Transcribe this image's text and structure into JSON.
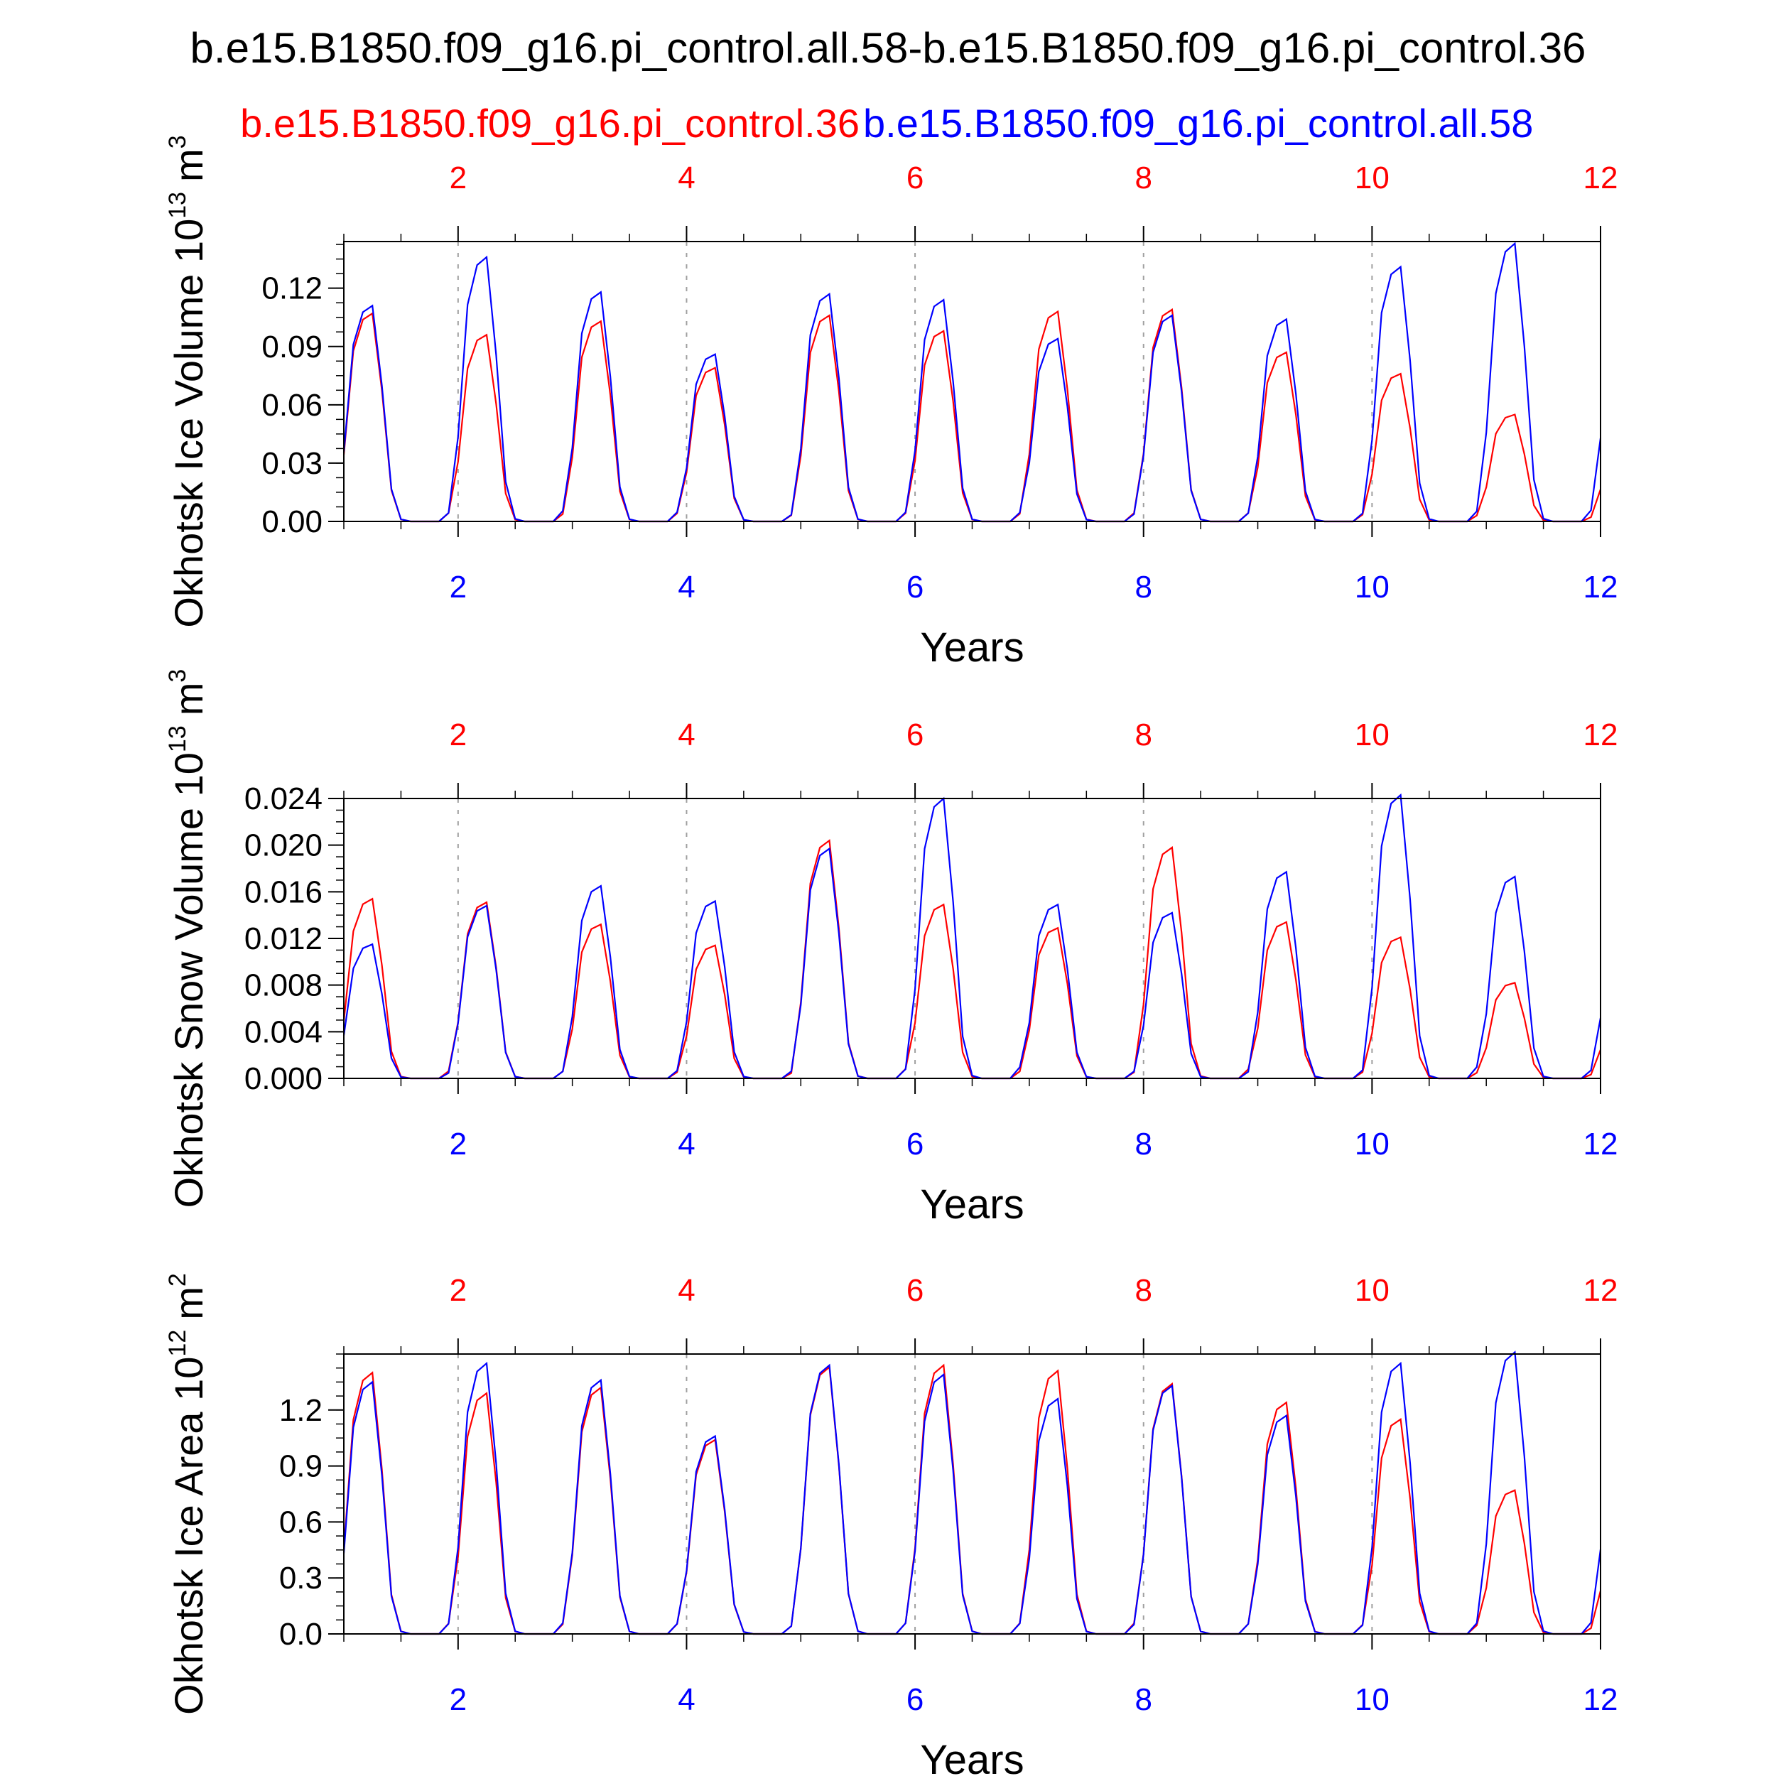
{
  "title": "b.e15.B1850.f09_g16.pi_control.all.58-b.e15.B1850.f09_g16.pi_control.36",
  "legend": {
    "red_label": "b.e15.B1850.f09_g16.pi_control.36",
    "blue_label": "b.e15.B1850.f09_g16.pi_control.all.58"
  },
  "colors": {
    "red": "#ff0000",
    "blue": "#0000ff",
    "axis": "#000000",
    "grid": "#a0a0a0"
  },
  "chart_data": [
    {
      "type": "line",
      "ylabel_main": "Okhotsk Ice Volume 10",
      "ylabel_exp": "13",
      "ylabel_unit": "m",
      "ylabel_unit_exp": "3",
      "xlabel": "Years",
      "xlim": [
        1,
        12
      ],
      "ylim": [
        0,
        0.144
      ],
      "yticks": [
        0.0,
        0.03,
        0.06,
        0.09,
        0.12
      ],
      "ytick_labels": [
        "0.00",
        "0.03",
        "0.06",
        "0.09",
        "0.12"
      ],
      "xticks": [
        2,
        4,
        6,
        8,
        10,
        12
      ],
      "xtick_labels": [
        "2",
        "4",
        "6",
        "8",
        "10",
        "12"
      ],
      "series": [
        {
          "name": "b.e15.B1850.f09_g16.pi_control.36",
          "color": "red",
          "peaks": [
            0.107,
            0.096,
            0.103,
            0.079,
            0.106,
            0.098,
            0.108,
            0.109,
            0.087,
            0.076,
            0.055
          ]
        },
        {
          "name": "b.e15.B1850.f09_g16.pi_control.all.58",
          "color": "blue",
          "peaks": [
            0.111,
            0.136,
            0.118,
            0.086,
            0.117,
            0.114,
            0.094,
            0.106,
            0.104,
            0.131,
            0.143
          ]
        }
      ]
    },
    {
      "type": "line",
      "ylabel_main": "Okhotsk Snow Volume 10",
      "ylabel_exp": "13",
      "ylabel_unit": "m",
      "ylabel_unit_exp": "3",
      "xlabel": "Years",
      "xlim": [
        1,
        12
      ],
      "ylim": [
        0,
        0.024
      ],
      "yticks": [
        0.0,
        0.004,
        0.008,
        0.012,
        0.016,
        0.02,
        0.024
      ],
      "ytick_labels": [
        "0.000",
        "0.004",
        "0.008",
        "0.012",
        "0.016",
        "0.020",
        "0.024"
      ],
      "xticks": [
        2,
        4,
        6,
        8,
        10,
        12
      ],
      "xtick_labels": [
        "2",
        "4",
        "6",
        "8",
        "10",
        "12"
      ],
      "series": [
        {
          "name": "b.e15.B1850.f09_g16.pi_control.36",
          "color": "red",
          "peaks": [
            0.0154,
            0.0151,
            0.0132,
            0.0114,
            0.0204,
            0.0149,
            0.0129,
            0.0198,
            0.0134,
            0.0121,
            0.0082
          ]
        },
        {
          "name": "b.e15.B1850.f09_g16.pi_control.all.58",
          "color": "blue",
          "peaks": [
            0.0115,
            0.0148,
            0.0165,
            0.0152,
            0.0197,
            0.024,
            0.0149,
            0.0142,
            0.0177,
            0.0243,
            0.0173
          ]
        }
      ]
    },
    {
      "type": "line",
      "ylabel_main": "Okhotsk Ice Area 10",
      "ylabel_exp": "12",
      "ylabel_unit": "m",
      "ylabel_unit_exp": "2",
      "xlabel": "Years",
      "xlim": [
        1,
        12
      ],
      "ylim": [
        0,
        1.5
      ],
      "yticks": [
        0.0,
        0.3,
        0.6,
        0.9,
        1.2
      ],
      "ytick_labels": [
        "0.0",
        "0.3",
        "0.6",
        "0.9",
        "1.2"
      ],
      "xticks": [
        2,
        4,
        6,
        8,
        10,
        12
      ],
      "xtick_labels": [
        "2",
        "4",
        "6",
        "8",
        "10",
        "12"
      ],
      "series": [
        {
          "name": "b.e15.B1850.f09_g16.pi_control.36",
          "color": "red",
          "peaks": [
            1.4,
            1.29,
            1.32,
            1.04,
            1.43,
            1.44,
            1.41,
            1.34,
            1.24,
            1.15,
            0.77
          ]
        },
        {
          "name": "b.e15.B1850.f09_g16.pi_control.all.58",
          "color": "blue",
          "peaks": [
            1.35,
            1.45,
            1.36,
            1.06,
            1.44,
            1.39,
            1.26,
            1.33,
            1.17,
            1.45,
            1.51
          ]
        }
      ]
    }
  ]
}
